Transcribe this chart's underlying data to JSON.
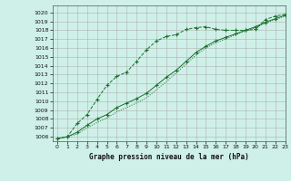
{
  "title": "Graphe pression niveau de la mer (hPa)",
  "bg_color": "#cff0e8",
  "grid_color": "#b0b0b0",
  "line_color": "#1a6e2e",
  "xlim": [
    -0.5,
    23
  ],
  "ylim": [
    1005.5,
    1020.8
  ],
  "yticks": [
    1006,
    1007,
    1008,
    1009,
    1010,
    1011,
    1012,
    1013,
    1014,
    1015,
    1016,
    1017,
    1018,
    1019,
    1020
  ],
  "xticks": [
    0,
    1,
    2,
    3,
    4,
    5,
    6,
    7,
    8,
    9,
    10,
    11,
    12,
    13,
    14,
    15,
    16,
    17,
    18,
    19,
    20,
    21,
    22,
    23
  ],
  "series1_x": [
    0,
    1,
    2,
    3,
    4,
    5,
    6,
    7,
    8,
    9,
    10,
    11,
    12,
    13,
    14,
    15,
    16,
    17,
    18,
    19,
    20,
    21,
    22,
    23
  ],
  "series1_y": [
    1005.8,
    1006.0,
    1007.5,
    1008.5,
    1010.2,
    1011.8,
    1012.8,
    1013.3,
    1014.5,
    1015.8,
    1016.8,
    1017.3,
    1017.5,
    1018.1,
    1018.3,
    1018.4,
    1018.1,
    1018.0,
    1018.0,
    1018.0,
    1018.1,
    1019.2,
    1019.6,
    1019.8
  ],
  "series2_x": [
    0,
    1,
    2,
    3,
    4,
    5,
    6,
    7,
    8,
    9,
    10,
    11,
    12,
    13,
    14,
    15,
    16,
    17,
    18,
    19,
    20,
    21,
    22,
    23
  ],
  "series2_y": [
    1005.8,
    1006.0,
    1006.5,
    1007.3,
    1008.0,
    1008.5,
    1009.3,
    1009.8,
    1010.3,
    1010.9,
    1011.8,
    1012.7,
    1013.5,
    1014.5,
    1015.5,
    1016.2,
    1016.8,
    1017.2,
    1017.6,
    1018.0,
    1018.4,
    1018.9,
    1019.3,
    1019.7
  ],
  "series3_x": [
    0,
    1,
    2,
    3,
    4,
    5,
    6,
    7,
    8,
    9,
    10,
    11,
    12,
    13,
    14,
    15,
    16,
    17,
    18,
    19,
    20,
    21,
    22,
    23
  ],
  "series3_y": [
    1005.8,
    1006.0,
    1006.3,
    1007.0,
    1007.6,
    1008.1,
    1008.8,
    1009.3,
    1009.8,
    1010.4,
    1011.3,
    1012.2,
    1013.2,
    1014.2,
    1015.2,
    1016.0,
    1016.6,
    1017.0,
    1017.5,
    1017.9,
    1018.3,
    1018.8,
    1019.2,
    1019.6
  ]
}
